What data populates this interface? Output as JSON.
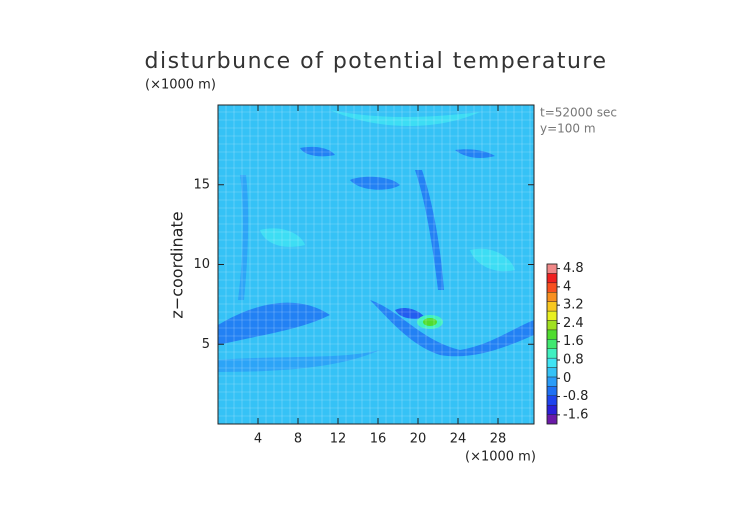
{
  "chart_data": {
    "type": "contour",
    "title": "disturbunce of potential temperature",
    "y_unit": "(×1000 m)",
    "x_unit": "(×1000 m)",
    "ylabel": "z−coordinate",
    "annotations": [
      "t=52000 sec",
      "y=100 m"
    ],
    "xlim": [
      0,
      31.6
    ],
    "ylim": [
      0,
      20
    ],
    "xticks": [
      4,
      8,
      12,
      16,
      20,
      24,
      28
    ],
    "yticks": [
      5,
      10,
      15
    ],
    "grid": true,
    "field_color": "#35c2f6",
    "colorbar": {
      "lim": [
        -2,
        5
      ],
      "ticks": [
        4.8,
        4,
        3.2,
        2.4,
        1.6,
        0.8,
        0,
        -0.8,
        -1.6
      ],
      "colors": [
        "#6a1aa8",
        "#2a20d8",
        "#1e44ee",
        "#1e70f4",
        "#2a9cf8",
        "#35c2f6",
        "#40e4f4",
        "#40f0c0",
        "#40e870",
        "#50dc30",
        "#a0e020",
        "#e8f020",
        "#f8c820",
        "#f89020",
        "#f85020",
        "#f02020",
        "#f08888"
      ]
    }
  }
}
